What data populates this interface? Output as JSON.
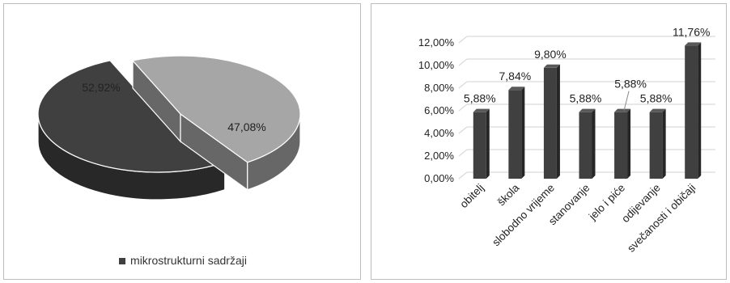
{
  "chart_data": [
    {
      "type": "pie",
      "title": "",
      "slices": [
        {
          "label": "52,92%",
          "value": 52.92,
          "color": "#404040"
        },
        {
          "label": "47,08%",
          "value": 47.08,
          "color": "#a6a6a6"
        }
      ],
      "legend": {
        "position": "bottom",
        "entries": [
          "mikrostrukturni sadržaji"
        ]
      }
    },
    {
      "type": "bar",
      "title": "",
      "xlabel": "",
      "ylabel": "",
      "categories": [
        "obitelj",
        "škola",
        "slobodno vrijeme",
        "stanovanje",
        "jelo i piće",
        "odijevanje",
        "svečanosti i običaji"
      ],
      "values": [
        5.88,
        7.84,
        9.8,
        5.88,
        5.88,
        5.88,
        11.76
      ],
      "data_labels": [
        "5,88%",
        "7,84%",
        "9,80%",
        "5,88%",
        "5,88%",
        "5,88%",
        "11,76%"
      ],
      "ylim": [
        0,
        12
      ],
      "yticks": [
        "0,00%",
        "2,00%",
        "4,00%",
        "6,00%",
        "8,00%",
        "10,00%",
        "12,00%"
      ],
      "grid": true,
      "bar_color": "#404040"
    }
  ]
}
